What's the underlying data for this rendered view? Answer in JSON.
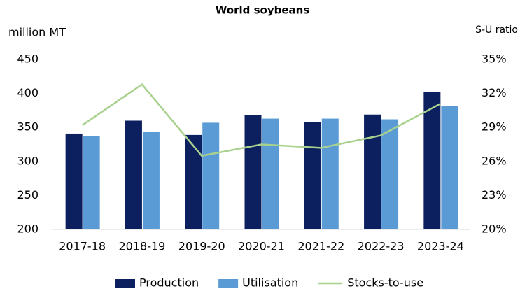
{
  "chart_data": {
    "type": "bar",
    "title": "World soybeans",
    "y_label": "million MT",
    "y2_label": "S-U ratio",
    "categories": [
      "2017-18",
      "2018-19",
      "2019-20",
      "2020-21",
      "2021-22",
      "2022-23",
      "2023-24"
    ],
    "series": [
      {
        "name": "Production",
        "type": "bar",
        "color": "#0c1f5e",
        "values": [
          341,
          360,
          339,
          368,
          358,
          369,
          402
        ]
      },
      {
        "name": "Utilisation",
        "type": "bar",
        "color": "#5b9bd5",
        "values": [
          337,
          343,
          357,
          363,
          363,
          362,
          382
        ]
      },
      {
        "name": "Stocks-to-use",
        "type": "line",
        "axis": "y2",
        "color": "#a9d18e",
        "values": [
          29.2,
          32.8,
          26.5,
          27.5,
          27.2,
          28.3,
          31.1
        ]
      }
    ],
    "ylim": [
      200,
      450
    ],
    "yticks": [
      200,
      250,
      300,
      350,
      400,
      450
    ],
    "y2lim": [
      20,
      35
    ],
    "y2ticks": [
      {
        "value": 20,
        "label": "20%"
      },
      {
        "value": 23,
        "label": "23%"
      },
      {
        "value": 26,
        "label": "26%"
      },
      {
        "value": 29,
        "label": "29%"
      },
      {
        "value": 32,
        "label": "32%"
      },
      {
        "value": 35,
        "label": "35%"
      }
    ],
    "grid": false,
    "legend": "bottom"
  }
}
